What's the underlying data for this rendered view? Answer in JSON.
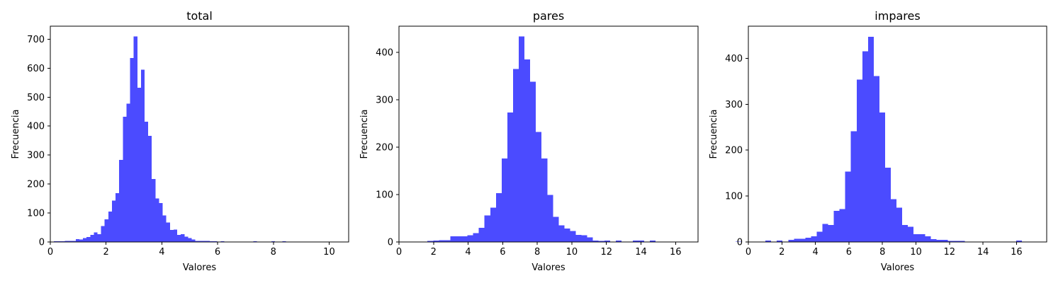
{
  "chart_data": [
    {
      "type": "bar",
      "title": "total",
      "xlabel": "Valores",
      "ylabel": "Frecuencia",
      "xlim": [
        0,
        10.7
      ],
      "ylim": [
        0,
        745
      ],
      "xticks": [
        0,
        2,
        4,
        6,
        8,
        10
      ],
      "yticks": [
        0,
        100,
        200,
        300,
        400,
        500,
        600,
        700
      ],
      "grid": false,
      "color": "#4b4bff",
      "bin_width": 0.13,
      "bin_start": 0.0,
      "values": [
        0,
        2,
        2,
        3,
        4,
        4,
        4,
        10,
        8,
        14,
        17,
        25,
        33,
        27,
        55,
        78,
        105,
        143,
        168,
        283,
        432,
        478,
        635,
        710,
        533,
        595,
        415,
        366,
        218,
        150,
        134,
        92,
        67,
        42,
        43,
        25,
        27,
        18,
        14,
        8,
        4,
        4,
        4,
        4,
        3,
        3,
        1,
        3,
        1,
        0,
        0,
        0,
        0,
        0,
        0,
        0,
        2,
        0,
        0,
        0,
        0,
        2,
        0,
        0,
        2,
        0,
        0,
        0,
        0,
        0,
        0,
        0,
        0,
        0,
        0,
        0,
        0,
        0,
        0,
        0,
        0,
        0
      ]
    },
    {
      "type": "bar",
      "title": "pares",
      "xlabel": "Valores",
      "ylabel": "Frecuencia",
      "xlim": [
        0,
        17.3
      ],
      "ylim": [
        0,
        455
      ],
      "xticks": [
        0,
        2,
        4,
        6,
        8,
        10,
        12,
        14,
        16
      ],
      "yticks": [
        0,
        100,
        200,
        300,
        400
      ],
      "grid": false,
      "color": "#4b4bff",
      "bin_width": 0.33,
      "bin_start": 0.0,
      "values": [
        1,
        1,
        1,
        1,
        1,
        2,
        3,
        4,
        4,
        12,
        12,
        12,
        14,
        19,
        30,
        56,
        72,
        103,
        176,
        273,
        365,
        433,
        385,
        338,
        232,
        176,
        99,
        53,
        35,
        28,
        23,
        15,
        14,
        10,
        3,
        2,
        3,
        1,
        3,
        0,
        0,
        3,
        3,
        1,
        3,
        0,
        0,
        0,
        0,
        0,
        0,
        0,
        0,
        0,
        0,
        0,
        0,
        0,
        0,
        1
      ]
    },
    {
      "type": "bar",
      "title": "impares",
      "xlabel": "Valores",
      "ylabel": "Frecuencia",
      "xlim": [
        0,
        17.8
      ],
      "ylim": [
        0,
        470
      ],
      "xticks": [
        0,
        2,
        4,
        6,
        8,
        10,
        12,
        14,
        16
      ],
      "yticks": [
        0,
        100,
        200,
        300,
        400
      ],
      "grid": false,
      "color": "#4b4bff",
      "bin_width": 0.34,
      "bin_start": 0.0,
      "values": [
        1,
        0,
        0,
        3,
        0,
        3,
        1,
        5,
        7,
        7,
        9,
        12,
        22,
        39,
        37,
        68,
        72,
        153,
        241,
        354,
        415,
        447,
        361,
        282,
        162,
        93,
        75,
        37,
        33,
        17,
        17,
        12,
        6,
        5,
        5,
        2,
        2,
        2,
        0,
        1,
        0,
        1,
        0,
        0,
        0,
        1,
        0,
        3,
        0,
        0,
        0,
        0,
        0,
        0,
        0,
        0,
        0,
        0,
        0,
        1,
        1
      ]
    }
  ]
}
